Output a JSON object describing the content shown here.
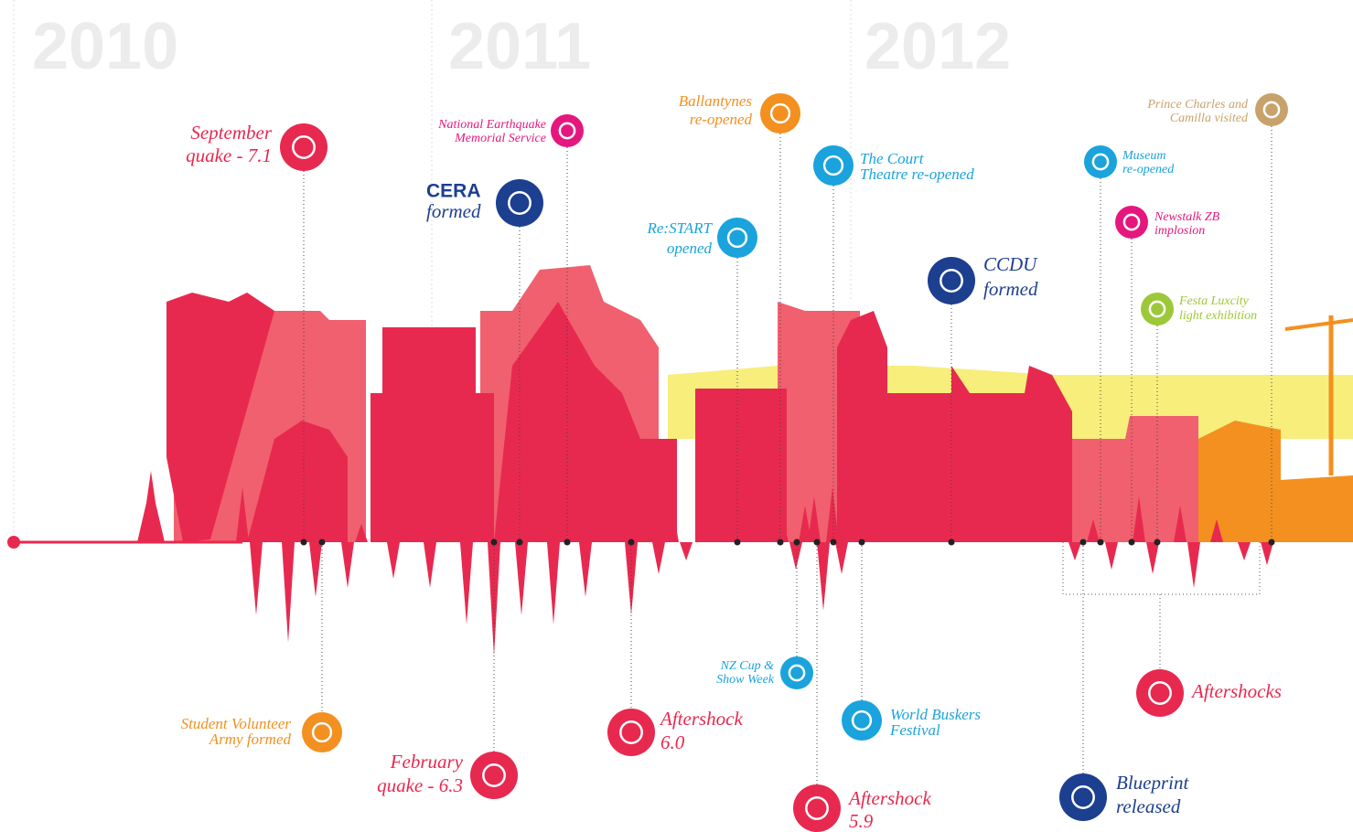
{
  "years": [
    "2010",
    "2011",
    "2012"
  ],
  "events": [
    {
      "lines": [
        "September",
        "quake - 7.1"
      ]
    },
    {
      "lines": [
        "National Earthquake",
        "Memorial Service"
      ]
    },
    {
      "lines": [
        "CERA",
        "formed"
      ]
    },
    {
      "lines": [
        "Ballantynes",
        "re-opened"
      ]
    },
    {
      "lines": [
        "The Court",
        "Theatre re-opened"
      ]
    },
    {
      "lines": [
        "Re:START",
        "opened"
      ]
    },
    {
      "lines": [
        "CCDU",
        "formed"
      ]
    },
    {
      "lines": [
        "Museum",
        "re-opened"
      ]
    },
    {
      "lines": [
        "Newstalk ZB",
        "implosion"
      ]
    },
    {
      "lines": [
        "Festa Luxcity",
        "light exhibition"
      ]
    },
    {
      "lines": [
        "Prince Charles and",
        "Camilla visited"
      ]
    },
    {
      "lines": [
        "Student Volunteer",
        "Army formed"
      ]
    },
    {
      "lines": [
        "February",
        "quake - 6.3"
      ]
    },
    {
      "lines": [
        "Aftershock",
        "6.0"
      ]
    },
    {
      "lines": [
        "NZ Cup &",
        "Show Week"
      ]
    },
    {
      "lines": [
        "World Buskers",
        "Festival"
      ]
    },
    {
      "lines": [
        "Aftershock",
        "5.9"
      ]
    },
    {
      "lines": [
        "Blueprint",
        "released"
      ]
    },
    {
      "lines": [
        "Aftershocks"
      ]
    }
  ]
}
